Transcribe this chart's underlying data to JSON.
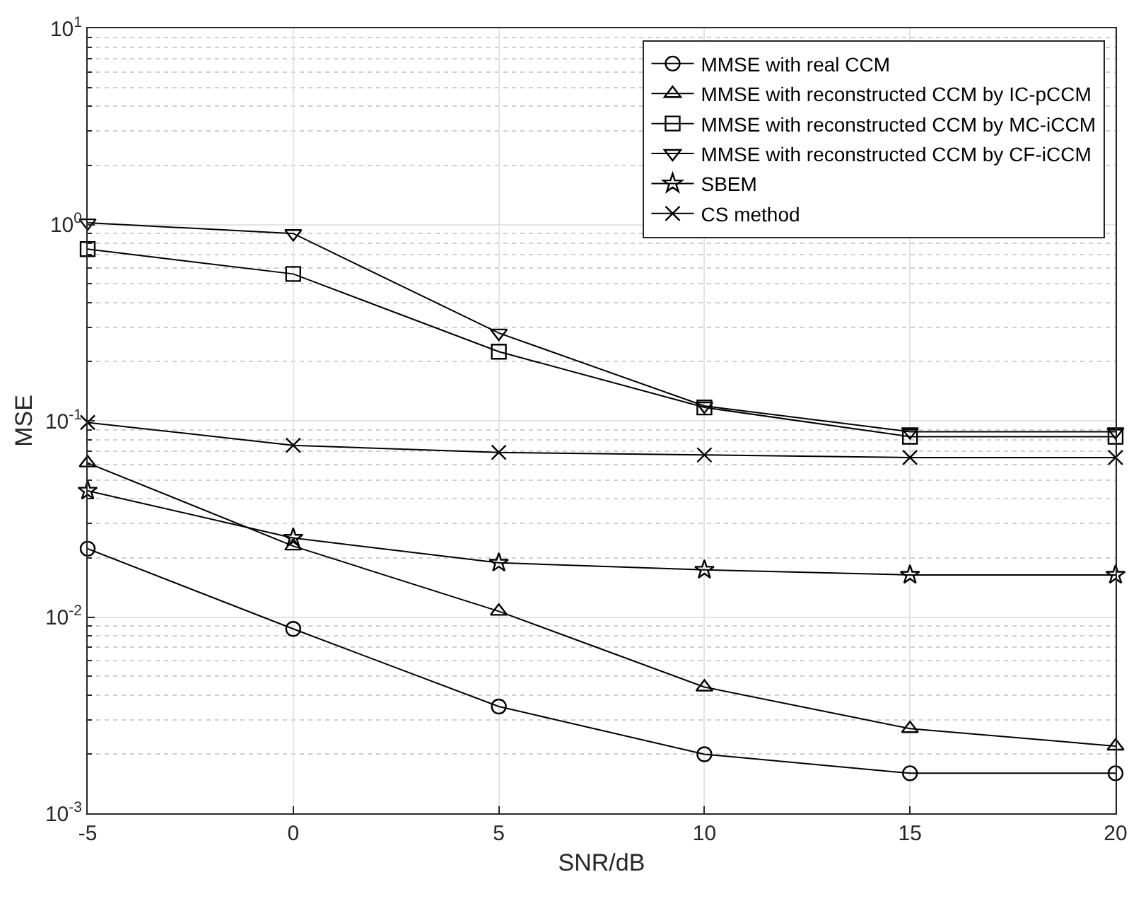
{
  "chart_data": {
    "type": "line",
    "xlabel": "SNR/dB",
    "ylabel": "MSE",
    "x": [
      -5,
      0,
      5,
      10,
      15,
      20
    ],
    "series": [
      {
        "name": "MMSE with real CCM",
        "color": "#000000",
        "marker": "circle",
        "values": [
          0.0223,
          0.0087,
          0.0035,
          0.002,
          0.0016,
          0.0016
        ]
      },
      {
        "name": "MMSE with reconstructed CCM by IC-pCCM",
        "color": "#000000",
        "marker": "triangle",
        "values": [
          0.061,
          0.023,
          0.0107,
          0.0044,
          0.0027,
          0.0022
        ]
      },
      {
        "name": "MMSE with reconstructed CCM by MC-iCCM",
        "color": "#000000",
        "marker": "square",
        "values": [
          0.75,
          0.56,
          0.225,
          0.117,
          0.083,
          0.083
        ]
      },
      {
        "name": "MMSE with reconstructed CCM by CF-iCCM",
        "color": "#000000",
        "marker": "triangle-down",
        "values": [
          1.02,
          0.9,
          0.28,
          0.119,
          0.088,
          0.088
        ]
      },
      {
        "name": "SBEM",
        "color": "#000000",
        "marker": "star",
        "values": [
          0.044,
          0.0253,
          0.0189,
          0.0174,
          0.0164,
          0.0164
        ]
      },
      {
        "name": "CS method",
        "color": "#000000",
        "marker": "cross",
        "values": [
          0.098,
          0.075,
          0.069,
          0.067,
          0.065,
          0.065
        ]
      }
    ],
    "log": "y",
    "xlim": [
      -5,
      20
    ],
    "xticks": [
      -5,
      0,
      5,
      10,
      15,
      20
    ],
    "ylim": [
      0.001,
      10
    ],
    "yticks": [
      {
        "value": 0.001,
        "label": "10$^{-3}$"
      },
      {
        "value": 0.01,
        "label": "10$^{-2}$"
      },
      {
        "value": 0.1,
        "label": "10$^{-1}$"
      },
      {
        "value": 1,
        "label": "10$^{0}$"
      },
      {
        "value": 10,
        "label": "10$^{1}$"
      }
    ],
    "grid": true,
    "legend": "top right",
    "line_style": "solid"
  }
}
